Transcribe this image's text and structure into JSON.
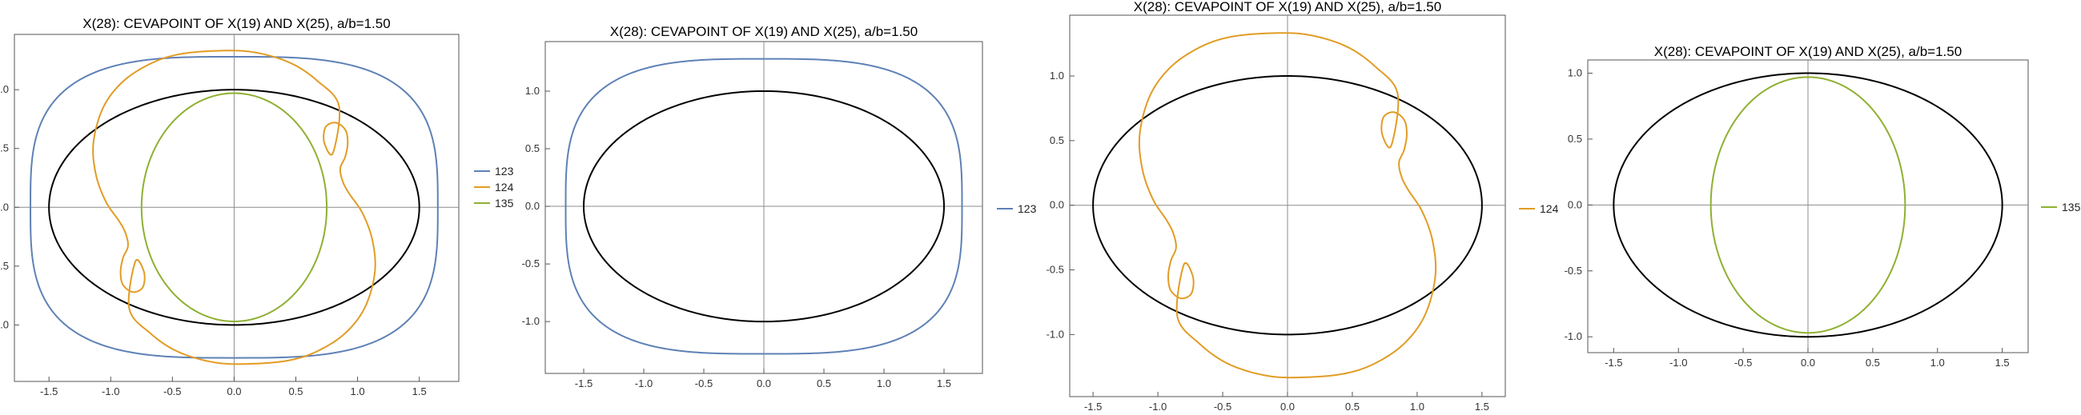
{
  "chart_data": [
    {
      "type": "line",
      "title": "X(28): CEVAPOINT OF X(19) AND X(25), a/b=1.50",
      "xlim": [
        -1.78,
        1.82
      ],
      "ylim": [
        -1.48,
        1.47
      ],
      "xticks": [
        -1.5,
        -1.0,
        -0.5,
        0.0,
        0.5,
        1.0,
        1.5
      ],
      "yticks": [
        -1.0,
        -0.5,
        0.0,
        0.5,
        1.0
      ],
      "xtick_labels": [
        "-1.5",
        "-1.0",
        "-0.5",
        "0.0",
        "0.5",
        "1.0",
        "1.5"
      ],
      "ytick_labels": [
        "-1.0",
        "-0.5",
        "0.0",
        "0.5",
        "1.0"
      ],
      "grid": false,
      "legend_position": "right",
      "series": [
        {
          "name": "123",
          "curve": "squircle",
          "a": 1.65,
          "b": 1.28,
          "n": 3.2
        },
        {
          "name": "124",
          "curve": "loop"
        },
        {
          "name": "135",
          "curve": "ellipse",
          "a": 0.75,
          "b": 0.97
        }
      ],
      "reference": {
        "curve": "ellipse",
        "a": 1.5,
        "b": 1.0
      }
    },
    {
      "type": "line",
      "title": "X(28): CEVAPOINT OF X(19) AND X(25), a/b=1.50",
      "xlim": [
        -1.82,
        1.82
      ],
      "ylim": [
        -1.45,
        1.43
      ],
      "xticks": [
        -1.5,
        -1.0,
        -0.5,
        0.0,
        0.5,
        1.0,
        1.5
      ],
      "yticks": [
        -1.0,
        -0.5,
        0.0,
        0.5,
        1.0
      ],
      "xtick_labels": [
        "-1.5",
        "-1.0",
        "-0.5",
        "0.0",
        "0.5",
        "1.0",
        "1.5"
      ],
      "ytick_labels": [
        "-1.0",
        "-0.5",
        "0.0",
        "0.5",
        "1.0"
      ],
      "grid": false,
      "legend_position": "right",
      "series": [
        {
          "name": "123",
          "curve": "squircle",
          "a": 1.65,
          "b": 1.28,
          "n": 3.2
        }
      ],
      "reference": {
        "curve": "ellipse",
        "a": 1.5,
        "b": 1.0
      }
    },
    {
      "type": "line",
      "title": "X(28): CEVAPOINT OF X(19) AND X(25), a/b=1.50",
      "xlim": [
        -1.68,
        1.68
      ],
      "ylim": [
        -1.48,
        1.47
      ],
      "xticks": [
        -1.5,
        -1.0,
        -0.5,
        0.0,
        0.5,
        1.0,
        1.5
      ],
      "yticks": [
        -1.0,
        -0.5,
        0.0,
        0.5,
        1.0
      ],
      "xtick_labels": [
        "-1.5",
        "-1.0",
        "-0.5",
        "0.0",
        "0.5",
        "1.0",
        "1.5"
      ],
      "ytick_labels": [
        "-1.0",
        "-0.5",
        "0.0",
        "0.5",
        "1.0"
      ],
      "grid": false,
      "legend_position": "right",
      "series": [
        {
          "name": "124",
          "curve": "loop"
        }
      ],
      "reference": {
        "curve": "ellipse",
        "a": 1.5,
        "b": 1.0
      }
    },
    {
      "type": "line",
      "title": "X(28): CEVAPOINT OF X(19) AND X(25), a/b=1.50",
      "xlim": [
        -1.7,
        1.7
      ],
      "ylim": [
        -1.12,
        1.1
      ],
      "xticks": [
        -1.5,
        -1.0,
        -0.5,
        0.0,
        0.5,
        1.0,
        1.5
      ],
      "yticks": [
        -1.0,
        -0.5,
        0.0,
        0.5,
        1.0
      ],
      "xtick_labels": [
        "-1.5",
        "-1.0",
        "-0.5",
        "0.0",
        "0.5",
        "1.0",
        "1.5"
      ],
      "ytick_labels": [
        "-1.0",
        "-0.5",
        "0.0",
        "0.5",
        "1.0"
      ],
      "grid": false,
      "legend_position": "right",
      "series": [
        {
          "name": "135",
          "curve": "ellipse",
          "a": 0.75,
          "b": 0.97
        }
      ],
      "reference": {
        "curve": "ellipse",
        "a": 1.5,
        "b": 1.0
      }
    }
  ],
  "colors": {
    "123": "#5e81b5",
    "124": "#e19c24",
    "135": "#8fb032",
    "reference": "#000000",
    "frame": "#555555",
    "axis": "#8c8c8c"
  }
}
